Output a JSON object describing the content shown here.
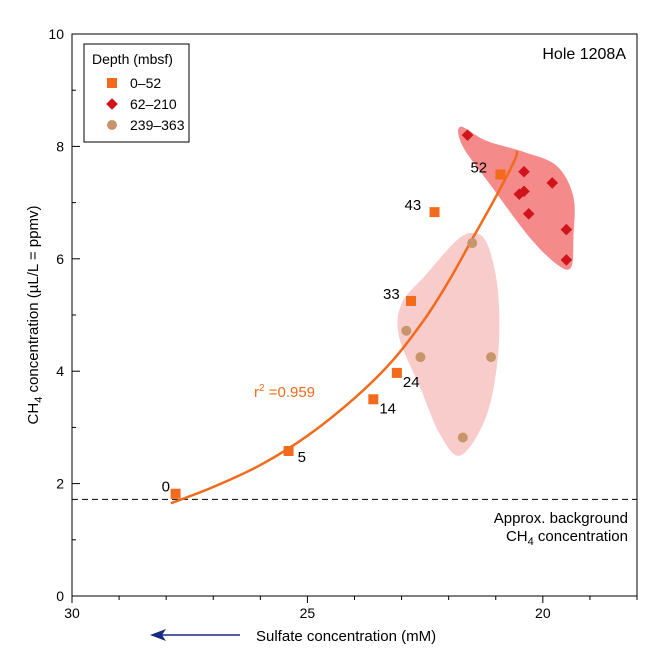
{
  "chart_data": {
    "type": "scatter",
    "title": "Hole 1208A",
    "xlabel": "Sulfate concentration (mM)",
    "ylabel_main": "CH",
    "ylabel_sub": "4",
    "ylabel_rest": " concentration (µL/L = ppmv)",
    "x_reversed": true,
    "xlim": [
      30,
      18
    ],
    "ylim": [
      0,
      10
    ],
    "x_ticks": [
      30,
      25,
      20
    ],
    "x_tick_labels": [
      "30",
      "25",
      "20"
    ],
    "y_ticks": [
      0,
      2,
      4,
      6,
      8,
      10
    ],
    "y_tick_labels": [
      "0",
      "2",
      "4",
      "6",
      "8",
      "10"
    ],
    "grid": false,
    "legend": {
      "title": "Depth (mbsf)",
      "placement": "top-left",
      "entries": [
        "0–52",
        "62–210",
        "239–363"
      ]
    },
    "series": [
      {
        "name": "0–52",
        "marker": "square",
        "color": "#f26a1b",
        "points": [
          {
            "x": 27.8,
            "y": 1.82,
            "label": "0"
          },
          {
            "x": 25.4,
            "y": 2.58,
            "label": "5"
          },
          {
            "x": 23.6,
            "y": 3.5,
            "label": "14"
          },
          {
            "x": 23.1,
            "y": 3.97,
            "label": "24"
          },
          {
            "x": 22.8,
            "y": 5.25,
            "label": "33"
          },
          {
            "x": 22.3,
            "y": 6.83,
            "label": "43"
          },
          {
            "x": 20.9,
            "y": 7.5,
            "label": "52"
          }
        ]
      },
      {
        "name": "62–210",
        "marker": "diamond",
        "color": "#d0141c",
        "points": [
          {
            "x": 21.6,
            "y": 8.2
          },
          {
            "x": 20.4,
            "y": 7.55
          },
          {
            "x": 20.4,
            "y": 7.2
          },
          {
            "x": 20.5,
            "y": 7.15
          },
          {
            "x": 19.8,
            "y": 7.35
          },
          {
            "x": 20.3,
            "y": 6.8
          },
          {
            "x": 19.5,
            "y": 6.52
          },
          {
            "x": 19.5,
            "y": 5.98
          }
        ]
      },
      {
        "name": "239–363",
        "marker": "circle",
        "color": "#c8956a",
        "points": [
          {
            "x": 21.5,
            "y": 6.28
          },
          {
            "x": 22.9,
            "y": 4.72
          },
          {
            "x": 22.6,
            "y": 4.25
          },
          {
            "x": 21.1,
            "y": 4.25
          },
          {
            "x": 21.7,
            "y": 2.82
          }
        ]
      }
    ],
    "fit": {
      "label": "r² =0.959",
      "label_r": "r",
      "label_sup": "2",
      "label_rest": " =0.959",
      "color": "#f26a1b",
      "points": [
        [
          27.9,
          1.65
        ],
        [
          27.0,
          1.94
        ],
        [
          26.0,
          2.33
        ],
        [
          25.0,
          2.85
        ],
        [
          24.0,
          3.52
        ],
        [
          23.2,
          4.18
        ],
        [
          22.5,
          4.94
        ],
        [
          22.0,
          5.6
        ],
        [
          21.5,
          6.35
        ],
        [
          21.0,
          7.1
        ],
        [
          20.6,
          7.75
        ],
        [
          20.55,
          7.92
        ]
      ]
    },
    "envelopes": [
      {
        "name": "62–210",
        "color": "#f48a8a",
        "points": [
          [
            21.75,
            8.35
          ],
          [
            21.2,
            8.1
          ],
          [
            20.4,
            7.9
          ],
          [
            19.7,
            7.65
          ],
          [
            19.35,
            7.1
          ],
          [
            19.35,
            6.4
          ],
          [
            19.4,
            5.85
          ],
          [
            19.7,
            5.9
          ],
          [
            20.3,
            6.4
          ],
          [
            21.1,
            7.3
          ],
          [
            21.7,
            8.0
          ]
        ]
      },
      {
        "name": "239–363",
        "color": "#f9cccc",
        "points": [
          [
            21.4,
            6.45
          ],
          [
            21.15,
            6.2
          ],
          [
            20.95,
            5.4
          ],
          [
            20.95,
            4.3
          ],
          [
            21.2,
            3.2
          ],
          [
            21.75,
            2.5
          ],
          [
            22.2,
            2.9
          ],
          [
            22.6,
            3.7
          ],
          [
            23.05,
            4.6
          ],
          [
            23.0,
            5.2
          ],
          [
            22.5,
            5.7
          ],
          [
            21.8,
            6.35
          ]
        ]
      }
    ],
    "background_line": {
      "y": 1.72,
      "label_line1": "Approx. background",
      "label_line2_main": "CH",
      "label_line2_sub": "4",
      "label_line2_rest": " concentration"
    },
    "arrow_direction": "left"
  }
}
